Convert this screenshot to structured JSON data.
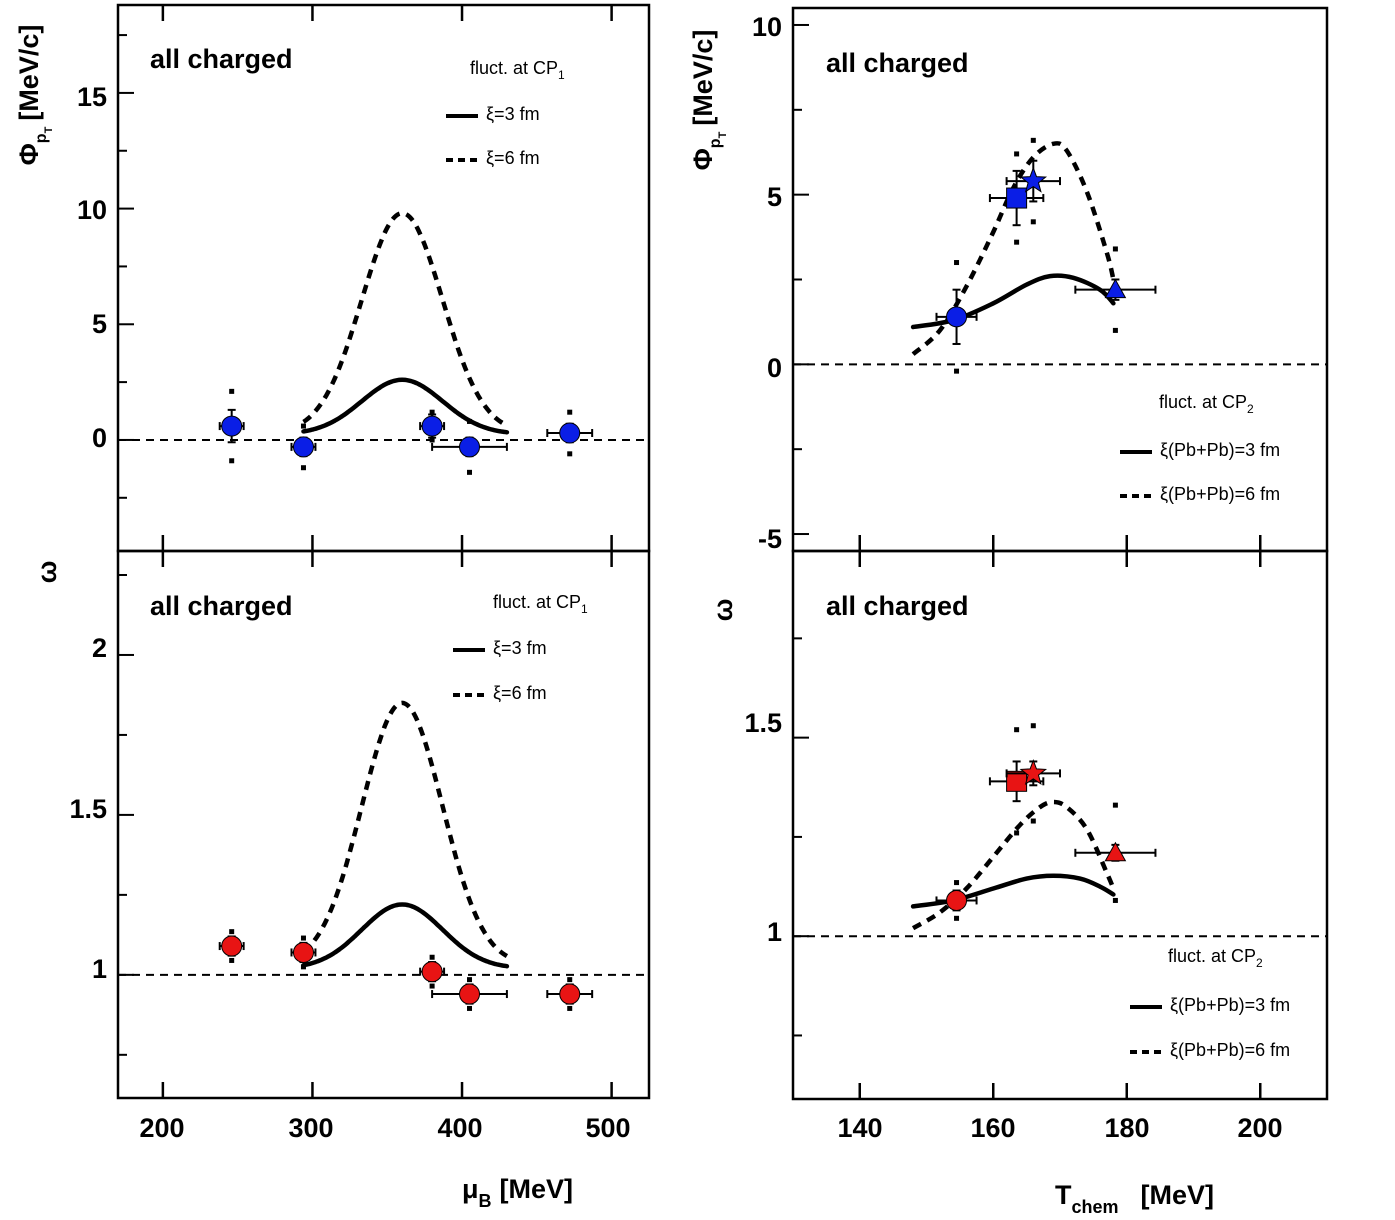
{
  "colors": {
    "blue": "#0a1ee6",
    "red": "#e81414",
    "axis": "#000000"
  },
  "chart_data": [
    {
      "id": "left-top",
      "type": "scatter",
      "annotation": "all charged",
      "fluct_label": "fluct. at CP",
      "fluct_sub": "1",
      "legend": [
        {
          "style": "solid",
          "label": "ξ=3 fm"
        },
        {
          "style": "dashed",
          "label": "ξ=6 fm"
        }
      ],
      "ylabel": "Φ",
      "ylabel_sub": "p",
      "ylabel_subsub": "T",
      "ylabel_unit": "[MeV/c]",
      "xlim": [
        170,
        525
      ],
      "ylim": [
        -4.8,
        18.8
      ],
      "xticks": [
        200,
        300,
        400,
        500
      ],
      "yticks": [
        0,
        5,
        10,
        15
      ],
      "ytick_labels": [
        "0",
        "5",
        "10",
        "15"
      ],
      "reference_line": 0,
      "points": [
        {
          "x": 246,
          "y": 0.6,
          "xerr": 8,
          "yerr": 0.7,
          "syserr": 1.5,
          "marker": "circle",
          "color": "blue"
        },
        {
          "x": 294,
          "y": -0.3,
          "xerr": 8,
          "yerr": 0.4,
          "syserr": 0.9,
          "marker": "circle",
          "color": "blue"
        },
        {
          "x": 380,
          "y": 0.6,
          "xerr": 8,
          "yerr": 0.5,
          "syserr": 0.6,
          "marker": "circle",
          "color": "blue"
        },
        {
          "x": 405,
          "y": -0.3,
          "xerr": 25,
          "yerr": 0.4,
          "syserr": 1.1,
          "marker": "circle",
          "color": "blue"
        },
        {
          "x": 472,
          "y": 0.3,
          "xerr": 15,
          "yerr": 0.4,
          "syserr": 0.9,
          "marker": "circle",
          "color": "blue"
        }
      ],
      "curves": [
        {
          "style": "solid",
          "baseline": 0.25,
          "amp": 2.35,
          "center": 360,
          "sigma": 27,
          "range": [
            294,
            430
          ]
        },
        {
          "style": "dashed",
          "baseline": 0.3,
          "amp": 9.5,
          "center": 360,
          "sigma": 27,
          "range": [
            294,
            430
          ]
        }
      ]
    },
    {
      "id": "left-bottom",
      "type": "scatter",
      "annotation": "all charged",
      "fluct_label": "fluct. at CP",
      "fluct_sub": "1",
      "legend": [
        {
          "style": "solid",
          "label": "ξ=3 fm"
        },
        {
          "style": "dashed",
          "label": "ξ=6 fm"
        }
      ],
      "ylabel": "ω",
      "xlabel": "μ",
      "xlabel_sub": "B",
      "xlabel_unit": "[MeV]",
      "xlim": [
        170,
        525
      ],
      "ylim": [
        0.615,
        2.325
      ],
      "xticks": [
        200,
        300,
        400,
        500
      ],
      "xtick_labels": [
        "200",
        "300",
        "400",
        "500"
      ],
      "yticks": [
        1,
        1.5,
        2
      ],
      "ytick_labels": [
        "1",
        "1.5",
        "2"
      ],
      "reference_line": 1,
      "points": [
        {
          "x": 246,
          "y": 1.09,
          "xerr": 8,
          "yerr": 0.03,
          "syserr": 0.045,
          "marker": "circle",
          "color": "red"
        },
        {
          "x": 294,
          "y": 1.07,
          "xerr": 8,
          "yerr": 0.03,
          "syserr": 0.045,
          "marker": "circle",
          "color": "red"
        },
        {
          "x": 380,
          "y": 1.01,
          "xerr": 8,
          "yerr": 0.03,
          "syserr": 0.045,
          "marker": "circle",
          "color": "red"
        },
        {
          "x": 405,
          "y": 0.94,
          "xerr": 25,
          "yerr": 0.03,
          "syserr": 0.045,
          "marker": "circle",
          "color": "red"
        },
        {
          "x": 472,
          "y": 0.94,
          "xerr": 15,
          "yerr": 0.03,
          "syserr": 0.045,
          "marker": "circle",
          "color": "red"
        }
      ],
      "curves": [
        {
          "style": "solid",
          "baseline": 1.02,
          "amp": 0.2,
          "center": 360,
          "sigma": 27,
          "range": [
            294,
            430
          ]
        },
        {
          "style": "dashed",
          "baseline": 1.03,
          "amp": 0.82,
          "center": 360,
          "sigma": 27,
          "range": [
            294,
            430
          ]
        }
      ]
    },
    {
      "id": "right-top",
      "type": "scatter",
      "annotation": "all charged",
      "fluct_label": "fluct. at CP",
      "fluct_sub": "2",
      "legend": [
        {
          "style": "solid",
          "label": "ξ(Pb+Pb)=3 fm"
        },
        {
          "style": "dashed",
          "label": "ξ(Pb+Pb)=6 fm"
        }
      ],
      "ylabel": "Φ",
      "ylabel_sub": "p",
      "ylabel_subsub": "T",
      "ylabel_unit": "[MeV/c]",
      "xlim": [
        130,
        210
      ],
      "ylim": [
        -5.5,
        10.5
      ],
      "xticks": [
        140,
        160,
        180,
        200
      ],
      "yticks": [
        -5,
        0,
        5,
        10
      ],
      "ytick_labels": [
        "-5",
        "0",
        "5",
        "10"
      ],
      "reference_line": 0,
      "points": [
        {
          "x": 154.5,
          "y": 1.4,
          "xerr": 3,
          "yerr": 0.8,
          "syserr": 1.6,
          "marker": "circle",
          "color": "blue"
        },
        {
          "x": 163.5,
          "y": 4.9,
          "xerr": 4,
          "yerr": 0.8,
          "syserr": 1.3,
          "marker": "square",
          "color": "blue"
        },
        {
          "x": 166.0,
          "y": 5.4,
          "xerr": 4,
          "yerr": 0.6,
          "syserr": 1.2,
          "marker": "star",
          "color": "blue"
        },
        {
          "x": 178.3,
          "y": 2.2,
          "xerr": 6,
          "yerr": 0.3,
          "syserr": 1.2,
          "marker": "triangle",
          "color": "blue"
        }
      ],
      "curves": [
        {
          "style": "solid",
          "kind": "spline",
          "pts": [
            [
              148,
              1.1
            ],
            [
              154,
              1.3
            ],
            [
              160,
              1.8
            ],
            [
              165,
              2.35
            ],
            [
              168.5,
              2.6
            ],
            [
              172,
              2.55
            ],
            [
              176,
              2.2
            ],
            [
              178,
              1.8
            ]
          ]
        },
        {
          "style": "dashed",
          "kind": "spline",
          "pts": [
            [
              148,
              0.3
            ],
            [
              152,
              1.0
            ],
            [
              156,
              2.3
            ],
            [
              160,
              3.9
            ],
            [
              163,
              5.2
            ],
            [
              166,
              6.1
            ],
            [
              169,
              6.5
            ],
            [
              171,
              6.3
            ],
            [
              174,
              5.1
            ],
            [
              177,
              3.3
            ],
            [
              178,
              2.5
            ]
          ]
        }
      ]
    },
    {
      "id": "right-bottom",
      "type": "scatter",
      "annotation": "all charged",
      "fluct_label": "fluct. at CP",
      "fluct_sub": "2",
      "legend": [
        {
          "style": "solid",
          "label": "ξ(Pb+Pb)=3 fm"
        },
        {
          "style": "dashed",
          "label": "ξ(Pb+Pb)=6 fm"
        }
      ],
      "ylabel": "ω",
      "xlabel": "T",
      "xlabel_sub": "chem",
      "xlabel_unit": "[MeV]",
      "xlim": [
        130,
        210
      ],
      "ylim": [
        0.59,
        1.97
      ],
      "xticks": [
        140,
        160,
        180,
        200
      ],
      "xtick_labels": [
        "140",
        "160",
        "180",
        "200"
      ],
      "yticks": [
        1,
        1.5
      ],
      "ytick_labels": [
        "1",
        "1.5"
      ],
      "reference_line": 1,
      "points": [
        {
          "x": 154.5,
          "y": 1.09,
          "xerr": 3,
          "yerr": 0.025,
          "syserr": 0.045,
          "marker": "circle",
          "color": "red"
        },
        {
          "x": 163.5,
          "y": 1.39,
          "xerr": 4,
          "yerr": 0.05,
          "syserr": 0.13,
          "marker": "square",
          "color": "red"
        },
        {
          "x": 166.0,
          "y": 1.41,
          "xerr": 4,
          "yerr": 0.03,
          "syserr": 0.12,
          "marker": "star",
          "color": "red"
        },
        {
          "x": 178.3,
          "y": 1.21,
          "xerr": 6,
          "yerr": 0.02,
          "syserr": 0.12,
          "marker": "triangle",
          "color": "red"
        }
      ],
      "curves": [
        {
          "style": "solid",
          "kind": "spline",
          "pts": [
            [
              148,
              1.075
            ],
            [
              154,
              1.09
            ],
            [
              160,
              1.12
            ],
            [
              165,
              1.145
            ],
            [
              169,
              1.152
            ],
            [
              173,
              1.145
            ],
            [
              176,
              1.125
            ],
            [
              178,
              1.105
            ]
          ]
        },
        {
          "style": "dashed",
          "kind": "spline",
          "pts": [
            [
              148,
              1.02
            ],
            [
              152,
              1.06
            ],
            [
              156,
              1.12
            ],
            [
              160,
              1.2
            ],
            [
              164,
              1.28
            ],
            [
              167,
              1.325
            ],
            [
              169,
              1.338
            ],
            [
              171,
              1.325
            ],
            [
              174,
              1.27
            ],
            [
              177,
              1.16
            ],
            [
              178,
              1.12
            ]
          ]
        }
      ]
    }
  ]
}
